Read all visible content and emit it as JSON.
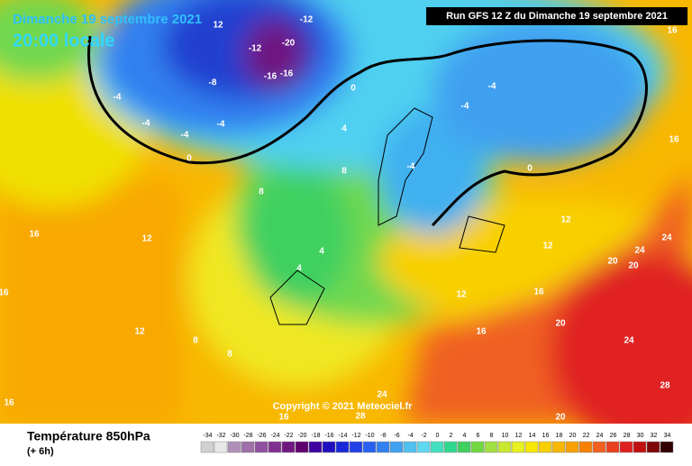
{
  "header": {
    "date": "Dimanche 19 septembre 2021",
    "time": "20:00 locale",
    "run": "Run GFS 12 Z du Dimanche 19 septembre 2021",
    "copyright": "Copyright © 2021 Meteociel.fr"
  },
  "footer": {
    "title": "Température 850hPa",
    "lead": "(+ 6h)"
  },
  "scale": {
    "values": [
      -34,
      -32,
      -30,
      -28,
      -26,
      -24,
      -22,
      -20,
      -18,
      -16,
      -14,
      -12,
      -10,
      -8,
      -6,
      -4,
      -2,
      0,
      2,
      4,
      6,
      8,
      10,
      12,
      14,
      16,
      18,
      20,
      22,
      24,
      26,
      28,
      30,
      32,
      34
    ],
    "colors": [
      "#d0d0d0",
      "#e8e8e8",
      "#b090b8",
      "#a070a8",
      "#9050a0",
      "#803090",
      "#701880",
      "#600070",
      "#4000a0",
      "#2010c0",
      "#1828d8",
      "#2040e8",
      "#2860f0",
      "#3080f0",
      "#40a0f0",
      "#50c0f0",
      "#60d8f0",
      "#40e0c0",
      "#30d890",
      "#40d060",
      "#70d840",
      "#a0e040",
      "#c8e830",
      "#e8f020",
      "#f8e800",
      "#f8d000",
      "#f8b800",
      "#f8a000",
      "#f88000",
      "#f06020",
      "#e84020",
      "#e02020",
      "#c01010",
      "#800808",
      "#300000"
    ]
  },
  "contour_labels": [
    12,
    -12,
    -20,
    -12,
    -16,
    -16,
    -8,
    -4,
    -4,
    -4,
    -4,
    0,
    0,
    4,
    8,
    8,
    16,
    12,
    4,
    4,
    12,
    12,
    24,
    24,
    20,
    20,
    16,
    12,
    20,
    16,
    24,
    28,
    24,
    28,
    16,
    20,
    16,
    16,
    12,
    8,
    8,
    0,
    -4,
    -4,
    -4,
    16,
    16
  ]
}
